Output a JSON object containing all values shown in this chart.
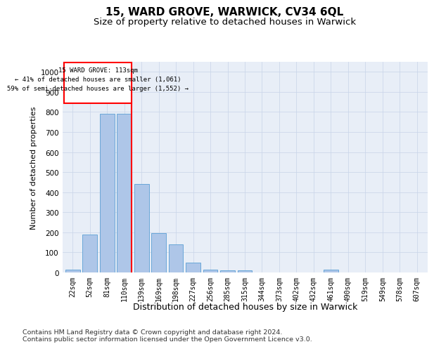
{
  "title1": "15, WARD GROVE, WARWICK, CV34 6QL",
  "title2": "Size of property relative to detached houses in Warwick",
  "xlabel": "Distribution of detached houses by size in Warwick",
  "ylabel": "Number of detached properties",
  "categories": [
    "22sqm",
    "52sqm",
    "81sqm",
    "110sqm",
    "139sqm",
    "169sqm",
    "198sqm",
    "227sqm",
    "256sqm",
    "285sqm",
    "315sqm",
    "344sqm",
    "373sqm",
    "402sqm",
    "432sqm",
    "461sqm",
    "490sqm",
    "519sqm",
    "549sqm",
    "578sqm",
    "607sqm"
  ],
  "values": [
    15,
    190,
    790,
    790,
    440,
    195,
    140,
    50,
    15,
    10,
    10,
    0,
    0,
    0,
    0,
    15,
    0,
    0,
    0,
    0,
    0
  ],
  "bar_color": "#aec6e8",
  "bar_edge_color": "#5a9fd4",
  "property_label": "15 WARD GROVE: 113sqm",
  "annotation_line1": "← 41% of detached houses are smaller (1,061)",
  "annotation_line2": "59% of semi-detached houses are larger (1,552) →",
  "ylim_max": 1050,
  "yticks": [
    0,
    100,
    200,
    300,
    400,
    500,
    600,
    700,
    800,
    900,
    1000
  ],
  "grid_color": "#c8d4e8",
  "bg_color": "#e8eef7",
  "footer1": "Contains HM Land Registry data © Crown copyright and database right 2024.",
  "footer2": "Contains public sector information licensed under the Open Government Licence v3.0."
}
